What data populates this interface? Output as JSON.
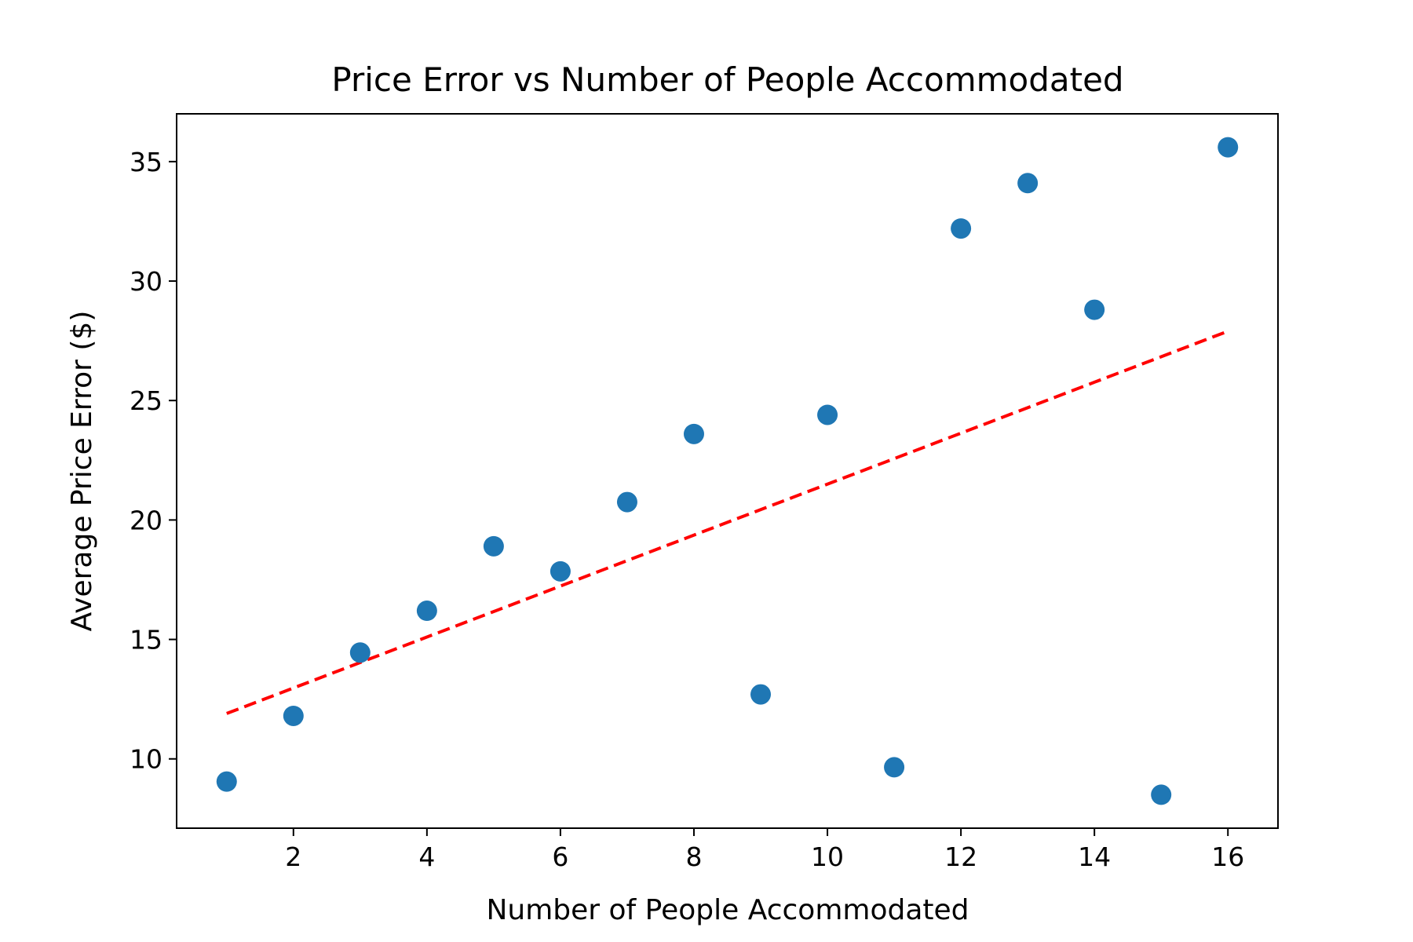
{
  "chart_data": {
    "type": "scatter",
    "title": "Price Error vs Number of People Accommodated",
    "xlabel": "Number of People Accommodated",
    "ylabel": "Average Price Error ($)",
    "xlim": [
      0.25,
      16.75
    ],
    "ylim": [
      7.1,
      37.0
    ],
    "xticks": [
      2,
      4,
      6,
      8,
      10,
      12,
      14,
      16
    ],
    "yticks": [
      10,
      15,
      20,
      25,
      30,
      35
    ],
    "grid": false,
    "points": [
      {
        "x": 1,
        "y": 9.05
      },
      {
        "x": 2,
        "y": 11.8
      },
      {
        "x": 3,
        "y": 14.45
      },
      {
        "x": 4,
        "y": 16.2
      },
      {
        "x": 5,
        "y": 18.9
      },
      {
        "x": 6,
        "y": 17.85
      },
      {
        "x": 7,
        "y": 20.75
      },
      {
        "x": 8,
        "y": 23.6
      },
      {
        "x": 9,
        "y": 12.7
      },
      {
        "x": 10,
        "y": 24.4
      },
      {
        "x": 11,
        "y": 9.65
      },
      {
        "x": 12,
        "y": 32.2
      },
      {
        "x": 13,
        "y": 34.1
      },
      {
        "x": 14,
        "y": 28.8
      },
      {
        "x": 15,
        "y": 8.5
      },
      {
        "x": 16,
        "y": 35.6
      }
    ],
    "trendline": {
      "x": [
        1,
        16
      ],
      "y": [
        11.9,
        27.9
      ],
      "style": "dashed",
      "color": "#ff0000"
    },
    "point_color": "#1f77b4"
  }
}
